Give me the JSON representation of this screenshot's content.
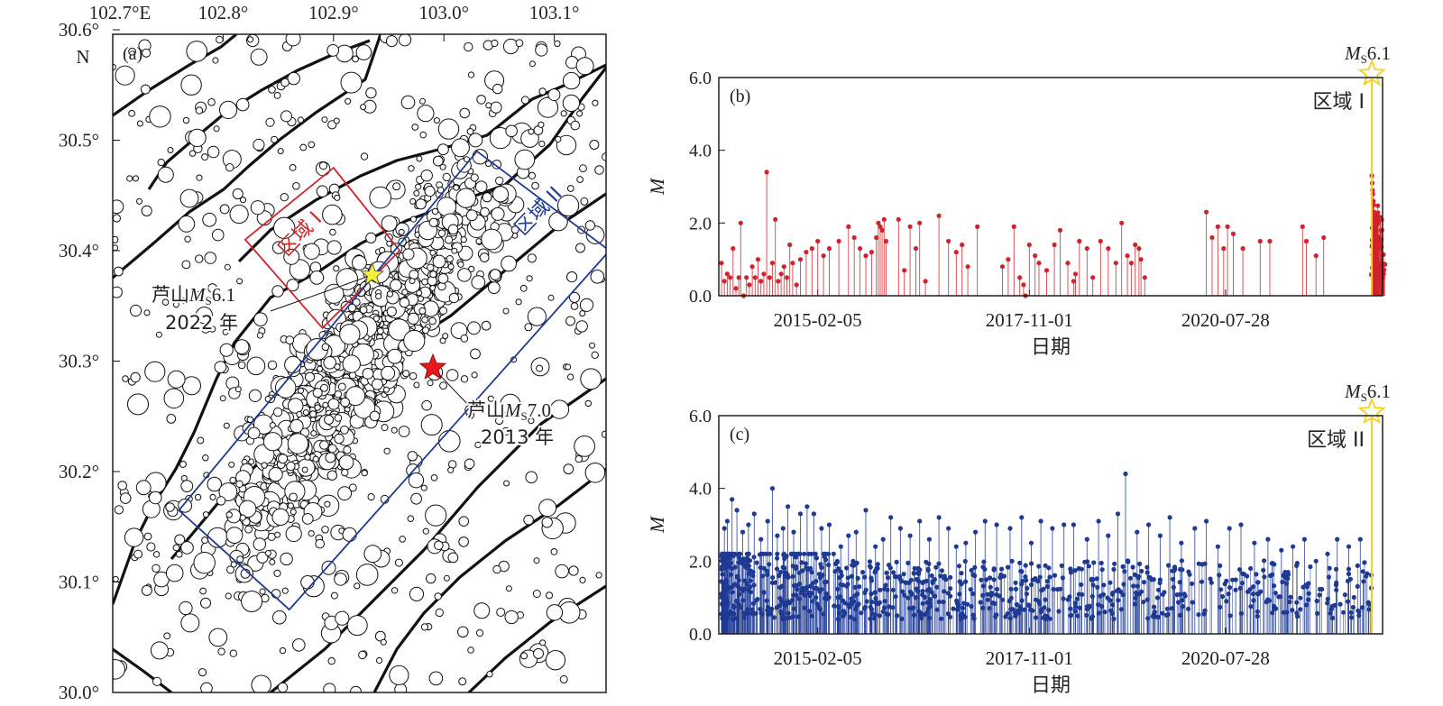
{
  "chart_data": [
    {
      "panel": "(a)",
      "type": "scatter",
      "lon_ticks": [
        "102.7°E",
        "102.8°",
        "102.9°",
        "103.0°",
        "103.1°"
      ],
      "lat_ticks": [
        "30.6°",
        "N",
        "30.5°",
        "30.4°",
        "30.3°",
        "30.2°",
        "30.1°",
        "30.0°"
      ],
      "xlim": [
        102.7,
        103.15
      ],
      "ylim": [
        30.0,
        30.6
      ],
      "regions": [
        {
          "label": "区域 I",
          "color": "#d0232a",
          "corners": [
            [
              102.9,
              30.475
            ],
            [
              102.96,
              30.4
            ],
            [
              102.89,
              30.33
            ],
            [
              102.82,
              30.41
            ]
          ]
        },
        {
          "label": "区域 II",
          "color": "#1f3a93",
          "corners": [
            [
              103.03,
              30.49
            ],
            [
              103.15,
              30.4
            ],
            [
              102.86,
              30.075
            ],
            [
              102.76,
              30.165
            ]
          ]
        }
      ],
      "events": [
        {
          "name": "芦山",
          "mag_label": "M",
          "mag_sub": "S",
          "mag_value": "6.1",
          "year_label": "2022 年",
          "lon": 102.935,
          "lat": 30.378,
          "color": "#f3ef3a"
        },
        {
          "name": "芦山",
          "mag_label": "M",
          "mag_sub": "S",
          "mag_value": "7.0",
          "year_label": "2013 年",
          "lon": 102.99,
          "lat": 30.294,
          "color": "#e8191d"
        }
      ]
    },
    {
      "panel": "(b)",
      "type": "stem",
      "region_label": "区域 I",
      "ylabel": "M",
      "xlabel": "日期",
      "ylim": [
        0,
        6.0
      ],
      "yticks": [
        "0.0",
        "2.0",
        "4.0",
        "6.0"
      ],
      "xticks": [
        "2015-02-05",
        "2017-11-01",
        "2020-07-28"
      ],
      "color": "#d0232a",
      "mainshock": {
        "label": "M",
        "sub": "S",
        "value": "6.1",
        "magnitude": 6.1,
        "color": "#f3d21c"
      },
      "points": [
        [
          0.0,
          0.9
        ],
        [
          0.15,
          0.4
        ],
        [
          0.3,
          0.6
        ],
        [
          0.45,
          0.5
        ],
        [
          0.6,
          1.3
        ],
        [
          0.75,
          0.2
        ],
        [
          0.9,
          0.5
        ],
        [
          1.0,
          2.0
        ],
        [
          1.15,
          0.0
        ],
        [
          1.3,
          0.5
        ],
        [
          1.45,
          0.3
        ],
        [
          1.6,
          0.8
        ],
        [
          1.75,
          0.5
        ],
        [
          1.9,
          1.0
        ],
        [
          2.05,
          0.4
        ],
        [
          2.2,
          0.6
        ],
        [
          2.35,
          3.4
        ],
        [
          2.5,
          0.5
        ],
        [
          2.65,
          0.9
        ],
        [
          2.8,
          2.1
        ],
        [
          2.95,
          0.4
        ],
        [
          3.1,
          0.6
        ],
        [
          3.25,
          0.8
        ],
        [
          3.4,
          0.5
        ],
        [
          3.55,
          1.4
        ],
        [
          3.7,
          0.9
        ],
        [
          3.9,
          0.3
        ],
        [
          4.1,
          1.0
        ],
        [
          4.4,
          1.2
        ],
        [
          4.7,
          1.3
        ],
        [
          5.0,
          1.5
        ],
        [
          5.3,
          1.1
        ],
        [
          5.6,
          1.3
        ],
        [
          6.1,
          1.5
        ],
        [
          6.6,
          1.9
        ],
        [
          6.9,
          1.6
        ],
        [
          7.2,
          1.3
        ],
        [
          7.5,
          1.1
        ],
        [
          7.8,
          1.2
        ],
        [
          8.05,
          1.6
        ],
        [
          8.15,
          2.0
        ],
        [
          8.25,
          1.9
        ],
        [
          8.35,
          1.8
        ],
        [
          8.45,
          2.1
        ],
        [
          8.55,
          1.5
        ],
        [
          9.2,
          2.1
        ],
        [
          9.5,
          0.7
        ],
        [
          9.8,
          1.9
        ],
        [
          10.1,
          1.3
        ],
        [
          10.3,
          2.0
        ],
        [
          10.6,
          0.4
        ],
        [
          11.3,
          2.2
        ],
        [
          11.8,
          1.5
        ],
        [
          12.2,
          1.2
        ],
        [
          12.5,
          1.4
        ],
        [
          12.8,
          0.8
        ],
        [
          13.3,
          1.9
        ],
        [
          14.6,
          0.8
        ],
        [
          14.9,
          1.0
        ],
        [
          15.2,
          1.9
        ],
        [
          15.5,
          0.5
        ],
        [
          15.7,
          0.3
        ],
        [
          15.8,
          0.0
        ],
        [
          16.0,
          1.4
        ],
        [
          16.3,
          1.1
        ],
        [
          16.5,
          0.9
        ],
        [
          16.9,
          0.7
        ],
        [
          17.3,
          1.4
        ],
        [
          17.6,
          1.8
        ],
        [
          18.0,
          0.9
        ],
        [
          18.3,
          0.4
        ],
        [
          18.4,
          0.6
        ],
        [
          18.6,
          1.5
        ],
        [
          19.0,
          1.3
        ],
        [
          19.3,
          0.5
        ],
        [
          19.7,
          1.5
        ],
        [
          20.1,
          1.3
        ],
        [
          20.5,
          0.9
        ],
        [
          20.8,
          2.0
        ],
        [
          21.1,
          1.1
        ],
        [
          21.3,
          0.9
        ],
        [
          21.5,
          1.4
        ],
        [
          21.7,
          1.3
        ],
        [
          21.8,
          1.0
        ],
        [
          22.0,
          0.5
        ],
        [
          25.2,
          2.3
        ],
        [
          25.5,
          1.6
        ],
        [
          25.8,
          1.9
        ],
        [
          26.1,
          1.3
        ],
        [
          26.3,
          1.9
        ],
        [
          26.6,
          1.7
        ],
        [
          27.1,
          1.3
        ],
        [
          28.0,
          1.5
        ],
        [
          28.5,
          1.5
        ],
        [
          30.2,
          1.9
        ],
        [
          30.4,
          1.5
        ],
        [
          30.9,
          1.1
        ],
        [
          31.3,
          1.6
        ]
      ],
      "aftershock_swarm": {
        "values": [
          3.3,
          3.1,
          2.9,
          2.8,
          2.6,
          2.5,
          2.3,
          2.2,
          2.1,
          2.0,
          1.9,
          1.8,
          1.7,
          1.6,
          1.5
        ]
      }
    },
    {
      "panel": "(c)",
      "type": "stem",
      "region_label": "区域 II",
      "ylabel": "M",
      "xlabel": "日期",
      "ylim": [
        0,
        6.0
      ],
      "yticks": [
        "0.0",
        "2.0",
        "4.0",
        "6.0"
      ],
      "xticks": [
        "2015-02-05",
        "2017-11-01",
        "2020-07-28"
      ],
      "color": "#1f3a93",
      "mainshock": {
        "label": "M",
        "sub": "S",
        "value": "6.1",
        "magnitude": 6.1,
        "color": "#f3d21c"
      },
      "notable_points": [
        [
          0.15,
          2.9
        ],
        [
          0.3,
          3.1
        ],
        [
          0.55,
          3.7
        ],
        [
          0.8,
          3.4
        ],
        [
          1.1,
          2.8
        ],
        [
          1.4,
          3.0
        ],
        [
          1.7,
          3.3
        ],
        [
          2.05,
          2.6
        ],
        [
          2.4,
          3.1
        ],
        [
          2.65,
          4.0
        ],
        [
          2.9,
          2.7
        ],
        [
          3.2,
          2.9
        ],
        [
          3.45,
          3.5
        ],
        [
          3.75,
          2.8
        ],
        [
          4.1,
          3.3
        ],
        [
          4.45,
          3.5
        ],
        [
          4.8,
          3.3
        ],
        [
          5.2,
          2.9
        ],
        [
          5.6,
          3.0
        ],
        [
          6.2,
          2.4
        ],
        [
          6.6,
          2.7
        ],
        [
          7.0,
          2.8
        ],
        [
          7.5,
          3.4
        ],
        [
          8.0,
          2.4
        ],
        [
          8.4,
          2.6
        ],
        [
          8.8,
          3.2
        ],
        [
          9.3,
          2.9
        ],
        [
          9.8,
          2.7
        ],
        [
          10.3,
          3.1
        ],
        [
          10.8,
          2.6
        ],
        [
          11.3,
          3.2
        ],
        [
          11.8,
          2.9
        ],
        [
          12.2,
          2.4
        ],
        [
          12.7,
          2.5
        ],
        [
          13.2,
          2.8
        ],
        [
          13.7,
          3.1
        ],
        [
          14.3,
          3.0
        ],
        [
          15.0,
          2.9
        ],
        [
          15.6,
          3.2
        ],
        [
          16.1,
          2.5
        ],
        [
          16.6,
          3.1
        ],
        [
          17.2,
          2.9
        ],
        [
          17.8,
          3.0
        ],
        [
          18.3,
          3.0
        ],
        [
          19.0,
          2.6
        ],
        [
          19.6,
          3.1
        ],
        [
          20.1,
          2.7
        ],
        [
          20.6,
          3.3
        ],
        [
          21.0,
          4.4
        ],
        [
          21.6,
          2.8
        ],
        [
          22.2,
          3.0
        ],
        [
          22.8,
          2.7
        ],
        [
          23.3,
          3.2
        ],
        [
          23.9,
          2.5
        ],
        [
          24.6,
          2.9
        ],
        [
          25.2,
          3.1
        ],
        [
          25.8,
          2.4
        ],
        [
          26.4,
          2.9
        ],
        [
          27.0,
          3.0
        ],
        [
          27.7,
          2.5
        ],
        [
          28.4,
          2.6
        ],
        [
          29.1,
          2.3
        ],
        [
          29.7,
          2.4
        ],
        [
          30.3,
          2.6
        ],
        [
          30.9,
          2.0
        ],
        [
          31.5,
          2.2
        ],
        [
          32.0,
          2.6
        ],
        [
          32.6,
          2.4
        ],
        [
          33.2,
          2.6
        ]
      ]
    }
  ]
}
